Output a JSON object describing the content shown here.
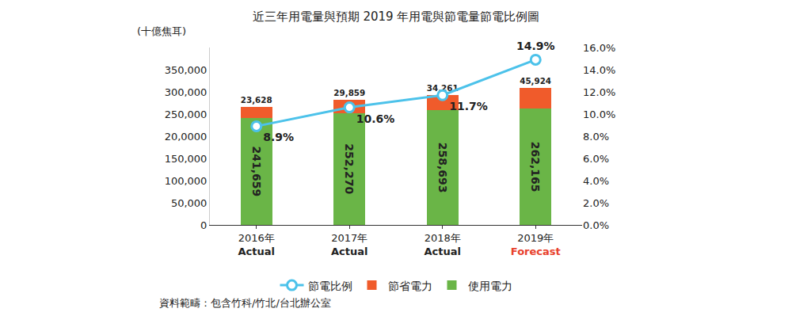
{
  "chart_data": {
    "type": "bar",
    "title": "近三年用電量與預期 2019 年用電與節電量節電比例圖",
    "ylabel": "(十億焦耳)",
    "categories": [
      "2016年",
      "2017年",
      "2018年",
      "2019年"
    ],
    "category_status": [
      "Actual",
      "Actual",
      "Actual",
      "Forecast"
    ],
    "category_status_colors": [
      "#222222",
      "#222222",
      "#222222",
      "#e8412c"
    ],
    "stacked": true,
    "data_labels": true,
    "legend": "bottom",
    "grid": false,
    "ylim": [
      0,
      400000
    ],
    "yticks": [
      0,
      {
        "value": 50000,
        "label": "50,000"
      },
      {
        "value": 100000,
        "label": "100,000"
      },
      {
        "value": 150000,
        "label": "150,000"
      },
      {
        "value": 200000,
        "label": "20,0000"
      },
      {
        "value": 250000,
        "label": "250,000"
      },
      {
        "value": 300000,
        "label": "300,000"
      },
      {
        "value": 350000,
        "label": "350,000"
      }
    ],
    "y2lim": [
      0,
      16
    ],
    "y2ticks": [
      {
        "value": 0,
        "label": "0.0%"
      },
      {
        "value": 2,
        "label": "2.0%"
      },
      {
        "value": 4,
        "label": "4.0%"
      },
      {
        "value": 6,
        "label": "6.0%"
      },
      {
        "value": 8,
        "label": "8.0%"
      },
      {
        "value": 10,
        "label": "10.0%"
      },
      {
        "value": 12,
        "label": "12.0%"
      },
      {
        "value": 14,
        "label": "14.0%"
      },
      {
        "value": 16,
        "label": "16.0%"
      }
    ],
    "series": [
      {
        "name": "使用電力",
        "type": "bar",
        "color": "#6ab547",
        "values": [
          241659,
          252270,
          258693,
          262165
        ],
        "value_labels": [
          "241,659",
          "252,270",
          "258,693",
          "262,165"
        ]
      },
      {
        "name": "節省電力",
        "type": "bar",
        "color": "#f05b2b",
        "values": [
          23628,
          29859,
          34261,
          45924
        ],
        "value_labels": [
          "23,628",
          "29,859",
          "34,261",
          "45,924"
        ]
      },
      {
        "name": "節電比例",
        "type": "line",
        "axis": "y2",
        "color": "#4cc2ea",
        "marker": "circle",
        "values": [
          8.9,
          10.6,
          11.7,
          14.9
        ],
        "value_labels": [
          "8.9%",
          "10.6%",
          "11.7%",
          "14.9%"
        ]
      }
    ],
    "source": "資料範疇：包含竹科/竹北/台北辦公室"
  }
}
